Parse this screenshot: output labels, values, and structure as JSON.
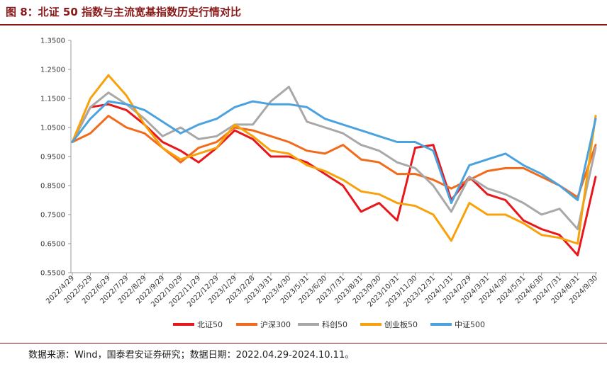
{
  "title": "图 8：北证 50 指数与主流宽基指数历史行情对比",
  "source": "数据来源：Wind，国泰君安证券研究；数据日期：2022.04.29-2024.10.11。",
  "chart_data": {
    "type": "line",
    "title": "图 8：北证 50 指数与主流宽基指数历史行情对比",
    "xlabel": "",
    "ylabel": "",
    "ylim": [
      0.55,
      1.35
    ],
    "yticks": [
      "0.5500",
      "0.6500",
      "0.7500",
      "0.8500",
      "0.9500",
      "1.0500",
      "1.1500",
      "1.2500",
      "1.3500"
    ],
    "categories": [
      "2022/4/29",
      "2022/5/29",
      "2022/6/29",
      "2022/7/29",
      "2022/8/29",
      "2022/9/29",
      "2022/10/29",
      "2022/11/29",
      "2022/12/29",
      "2023/1/29",
      "2023/2/28",
      "2023/3/31",
      "2023/4/30",
      "2023/5/31",
      "2023/6/30",
      "2023/7/31",
      "2023/8/31",
      "2023/9/30",
      "2023/10/31",
      "2023/11/30",
      "2023/12/31",
      "2024/1/31",
      "2024/2/29",
      "2024/3/31",
      "2024/4/30",
      "2024/5/31",
      "2024/6/30",
      "2024/7/31",
      "2024/8/31",
      "2024/9/30"
    ],
    "series": [
      {
        "name": "北证50",
        "color": "#e8171c",
        "values": [
          1.0,
          1.12,
          1.13,
          1.11,
          1.06,
          1.0,
          0.97,
          0.93,
          0.98,
          1.04,
          1.01,
          0.95,
          0.95,
          0.93,
          0.89,
          0.85,
          0.76,
          0.79,
          0.73,
          0.98,
          0.99,
          0.8,
          0.88,
          0.82,
          0.8,
          0.73,
          0.7,
          0.68,
          0.61,
          0.88
        ]
      },
      {
        "name": "沪深300",
        "color": "#f26b1d",
        "values": [
          1.0,
          1.03,
          1.09,
          1.05,
          1.03,
          0.98,
          0.93,
          0.98,
          1.0,
          1.05,
          1.04,
          1.02,
          1.0,
          0.97,
          0.96,
          0.99,
          0.94,
          0.93,
          0.89,
          0.89,
          0.87,
          0.84,
          0.87,
          0.9,
          0.91,
          0.91,
          0.88,
          0.85,
          0.81,
          0.99
        ]
      },
      {
        "name": "科创50",
        "color": "#a8a8a8",
        "values": [
          1.0,
          1.12,
          1.17,
          1.13,
          1.08,
          1.02,
          1.05,
          1.01,
          1.02,
          1.06,
          1.06,
          1.14,
          1.19,
          1.07,
          1.05,
          1.03,
          0.99,
          0.97,
          0.93,
          0.91,
          0.85,
          0.76,
          0.88,
          0.84,
          0.82,
          0.79,
          0.75,
          0.77,
          0.7,
          0.98
        ]
      },
      {
        "name": "创业板50",
        "color": "#f7a20b",
        "values": [
          1.0,
          1.15,
          1.23,
          1.16,
          1.06,
          0.98,
          0.94,
          0.96,
          0.98,
          1.06,
          1.02,
          0.97,
          0.96,
          0.92,
          0.9,
          0.87,
          0.83,
          0.82,
          0.79,
          0.78,
          0.75,
          0.66,
          0.79,
          0.75,
          0.75,
          0.72,
          0.68,
          0.67,
          0.65,
          1.09
        ]
      },
      {
        "name": "中证500",
        "color": "#4aa3df",
        "values": [
          1.0,
          1.08,
          1.14,
          1.13,
          1.11,
          1.07,
          1.03,
          1.06,
          1.08,
          1.12,
          1.14,
          1.13,
          1.13,
          1.12,
          1.08,
          1.06,
          1.04,
          1.02,
          1.0,
          1.0,
          0.97,
          0.79,
          0.92,
          0.94,
          0.96,
          0.92,
          0.89,
          0.85,
          0.8,
          1.08
        ]
      }
    ]
  }
}
